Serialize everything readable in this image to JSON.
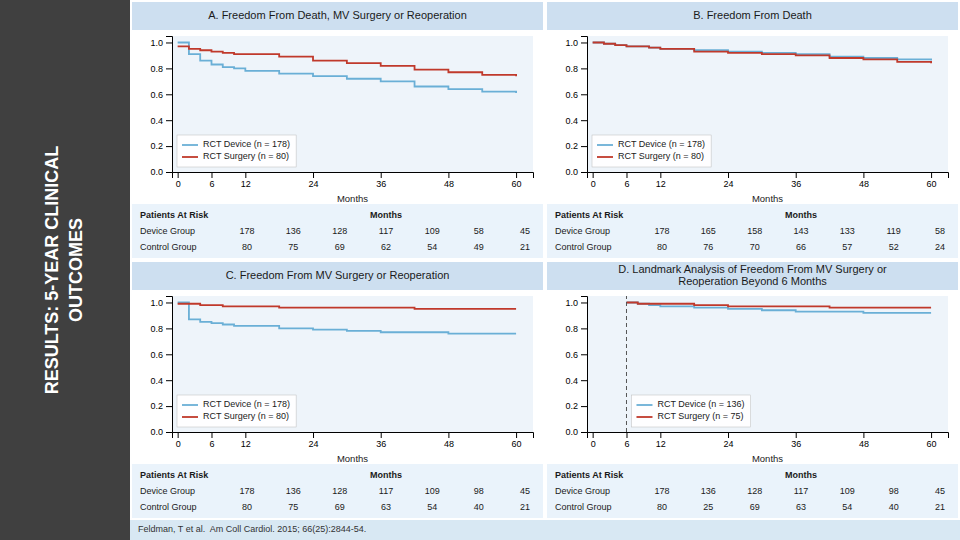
{
  "title": [
    "RESULTS: 5-YEAR CLINICAL",
    "OUTCOMES"
  ],
  "annotations": [
    "Feldman, T et al.  Am Coll Cardiol. 2015; 66(25):2844-54."
  ],
  "chart_data": [
    {
      "type": "step",
      "title": "A. Freedom From Death, MV Surgery or Reoperation",
      "x": [
        0,
        2,
        4,
        6,
        8,
        10,
        12,
        18,
        24,
        30,
        36,
        42,
        48,
        54,
        60
      ],
      "series": [
        {
          "name": "RCT Device (n = 178)",
          "color": "#6aafd6",
          "values": [
            1.0,
            0.91,
            0.86,
            0.83,
            0.81,
            0.8,
            0.78,
            0.76,
            0.74,
            0.72,
            0.7,
            0.66,
            0.64,
            0.62,
            0.61
          ]
        },
        {
          "name": "RCT Surgery (n = 80)",
          "color": "#c0392b",
          "values": [
            0.97,
            0.95,
            0.94,
            0.93,
            0.92,
            0.91,
            0.91,
            0.89,
            0.86,
            0.84,
            0.82,
            0.79,
            0.77,
            0.75,
            0.74
          ]
        }
      ],
      "xlabel": "Months",
      "xlim": [
        -1,
        63
      ],
      "ylim": [
        0.0,
        1.05
      ],
      "xticks": [
        0,
        6,
        12,
        24,
        36,
        48,
        60
      ],
      "yticks": [
        {
          "value": 0.0,
          "label": "0.0"
        },
        0.2,
        0.4,
        0.6,
        0.8,
        {
          "value": 1.0,
          "label": "1.0"
        }
      ],
      "grid": false,
      "legend": "lower left",
      "table": {
        "header": "Patients At Risk",
        "column_title": "Months",
        "rows": [
          {
            "label": "Device Group",
            "values": [
              178,
              136,
              128,
              117,
              109,
              58,
              45
            ]
          },
          {
            "label": "Control Group",
            "values": [
              80,
              75,
              69,
              62,
              54,
              49,
              21
            ]
          }
        ]
      }
    },
    {
      "type": "step",
      "title": "B. Freedom From Death",
      "x": [
        0,
        2,
        4,
        6,
        8,
        10,
        12,
        18,
        24,
        30,
        36,
        42,
        48,
        54,
        60
      ],
      "series": [
        {
          "name": "RCT Device (n = 178)",
          "color": "#6aafd6",
          "values": [
            1.0,
            0.99,
            0.98,
            0.97,
            0.97,
            0.96,
            0.95,
            0.94,
            0.93,
            0.92,
            0.91,
            0.89,
            0.88,
            0.87,
            0.86
          ]
        },
        {
          "name": "RCT Surgery (n = 80)",
          "color": "#c0392b",
          "values": [
            1.0,
            0.99,
            0.98,
            0.97,
            0.97,
            0.96,
            0.95,
            0.93,
            0.92,
            0.91,
            0.9,
            0.88,
            0.87,
            0.85,
            0.84
          ]
        }
      ],
      "xlabel": "Months",
      "xlim": [
        -1,
        63
      ],
      "ylim": [
        0.0,
        1.05
      ],
      "xticks": [
        0,
        6,
        12,
        24,
        36,
        48,
        60
      ],
      "yticks": [
        {
          "value": 0.0,
          "label": "0.0"
        },
        0.2,
        0.4,
        0.6,
        0.8,
        {
          "value": 1.0,
          "label": "1.0"
        }
      ],
      "grid": false,
      "legend": "lower left",
      "table": {
        "header": "Patients At Risk",
        "column_title": "Months",
        "rows": [
          {
            "label": "Device Group",
            "values": [
              178,
              165,
              158,
              143,
              133,
              119,
              58
            ]
          },
          {
            "label": "Control Group",
            "values": [
              80,
              76,
              70,
              66,
              57,
              52,
              24
            ]
          }
        ]
      }
    },
    {
      "type": "step",
      "title": "C. Freedom From MV Surgery or Reoperation",
      "x": [
        0,
        2,
        4,
        6,
        8,
        10,
        12,
        18,
        24,
        30,
        36,
        42,
        48,
        54,
        60
      ],
      "series": [
        {
          "name": "RCT Device (n = 178)",
          "color": "#6aafd6",
          "values": [
            1.0,
            0.87,
            0.85,
            0.84,
            0.83,
            0.82,
            0.82,
            0.8,
            0.79,
            0.78,
            0.77,
            0.77,
            0.76,
            0.76,
            0.76
          ]
        },
        {
          "name": "RCT Surgery (n = 80)",
          "color": "#c0392b",
          "values": [
            0.99,
            0.99,
            0.98,
            0.98,
            0.97,
            0.97,
            0.97,
            0.96,
            0.96,
            0.96,
            0.96,
            0.95,
            0.95,
            0.95,
            0.95
          ]
        }
      ],
      "xlabel": "Months",
      "xlim": [
        -1,
        63
      ],
      "ylim": [
        0.0,
        1.05
      ],
      "xticks": [
        0,
        6,
        12,
        24,
        36,
        48,
        60
      ],
      "yticks": [
        {
          "value": 0.0,
          "label": "0.0"
        },
        0.2,
        0.4,
        0.6,
        0.8,
        {
          "value": 1.0,
          "label": "1.0"
        }
      ],
      "grid": false,
      "legend": "lower left",
      "table": {
        "header": "Patients At Risk",
        "column_title": "Months",
        "rows": [
          {
            "label": "Device Group",
            "values": [
              178,
              136,
              128,
              117,
              109,
              98,
              45
            ]
          },
          {
            "label": "Control Group",
            "values": [
              80,
              75,
              69,
              63,
              54,
              40,
              21
            ]
          }
        ]
      }
    },
    {
      "type": "step",
      "title": "D. Landmark Analysis of Freedom From MV Surgery or\nReoperation Beyond 6 Months",
      "x": [
        6,
        8,
        10,
        12,
        18,
        24,
        30,
        36,
        42,
        48,
        54,
        60
      ],
      "series": [
        {
          "name": "RCT Device (n = 136)",
          "color": "#6aafd6",
          "values": [
            1.0,
            0.99,
            0.98,
            0.97,
            0.96,
            0.95,
            0.94,
            0.93,
            0.93,
            0.92,
            0.92,
            0.92
          ]
        },
        {
          "name": "RCT Surgery (n = 75)",
          "color": "#c0392b",
          "values": [
            1.0,
            0.99,
            0.99,
            0.99,
            0.98,
            0.97,
            0.97,
            0.97,
            0.96,
            0.96,
            0.96,
            0.96
          ]
        }
      ],
      "annotations": [
        {
          "type": "vline",
          "x": 6,
          "line_style": "dashed"
        }
      ],
      "xlabel": "Months",
      "xlim": [
        -1,
        63
      ],
      "ylim": [
        0.0,
        1.05
      ],
      "xticks": [
        0,
        6,
        12,
        24,
        36,
        48,
        60
      ],
      "yticks": [
        {
          "value": 0.0,
          "label": "0.0"
        },
        0.2,
        0.4,
        0.6,
        0.8,
        {
          "value": 1.0,
          "label": "1.0"
        }
      ],
      "grid": false,
      "legend": "lower left",
      "table": {
        "header": "Patients At Risk",
        "column_title": "Months",
        "rows": [
          {
            "label": "Device Group",
            "values": [
              178,
              136,
              128,
              117,
              109,
              98,
              45
            ]
          },
          {
            "label": "Control Group",
            "values": [
              80,
              25,
              69,
              63,
              54,
              40,
              21
            ]
          }
        ]
      }
    }
  ]
}
